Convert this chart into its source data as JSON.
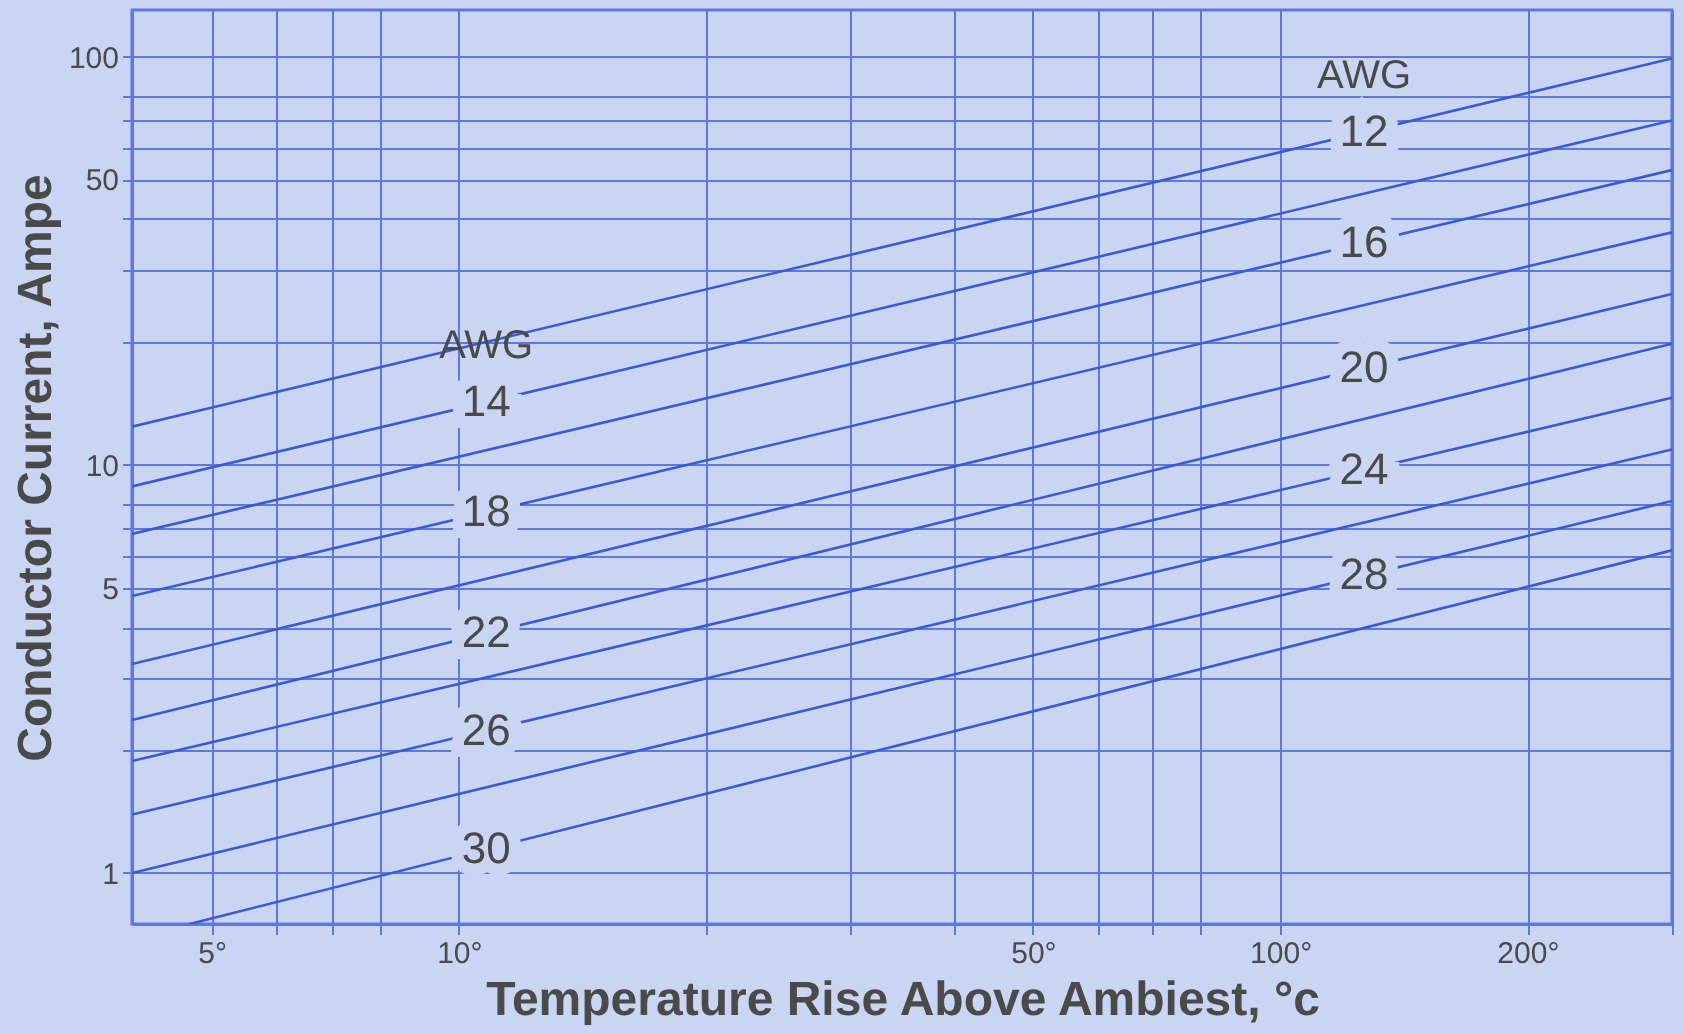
{
  "chart_data": {
    "type": "line",
    "xlabel": "Temperature Rise Above Ambiest, °c",
    "ylabel": "Conductor Current, Ampe",
    "log": "xy",
    "grid": true,
    "legend": false,
    "marker": "none",
    "line_style": "solid",
    "xlim": [
      4,
      300
    ],
    "xticks": [
      {
        "value": 5,
        "label": "5°"
      },
      {
        "value": 6,
        "label": null
      },
      {
        "value": 7,
        "label": null
      },
      {
        "value": 8,
        "label": null
      },
      {
        "value": 10,
        "label": "10°"
      },
      {
        "value": 20,
        "label": null
      },
      {
        "value": 30,
        "label": null
      },
      {
        "value": 40,
        "label": null
      },
      {
        "value": 50,
        "label": "50°"
      },
      {
        "value": 60,
        "label": null
      },
      {
        "value": 70,
        "label": null
      },
      {
        "value": 80,
        "label": null
      },
      {
        "value": 100,
        "label": "100°"
      },
      {
        "value": 200,
        "label": "200°"
      },
      {
        "value": 300,
        "label": null
      }
    ],
    "ylim": [
      0.75,
      130
    ],
    "yticks": [
      1,
      {
        "value": 2,
        "label": null
      },
      {
        "value": 3,
        "label": null
      },
      {
        "value": 4,
        "label": null
      },
      5,
      {
        "value": 6,
        "label": null
      },
      {
        "value": 7,
        "label": null
      },
      {
        "value": 8,
        "label": null
      },
      10,
      {
        "value": 20,
        "label": null
      },
      {
        "value": 30,
        "label": null
      },
      {
        "value": 40,
        "label": null
      },
      50,
      {
        "value": 60,
        "label": null
      },
      {
        "value": 70,
        "label": null
      },
      {
        "value": 80,
        "label": null
      },
      100
    ],
    "annotations": [
      "AWG",
      "AWG"
    ],
    "series": [
      {
        "name": "12",
        "color": "#3a5bd6",
        "x": [
          4,
          300
        ],
        "values": [
          12.4,
          98.9
        ]
      },
      {
        "name": "14",
        "color": "#3a5bd6",
        "x": [
          4,
          300
        ],
        "values": [
          8.85,
          69.7
        ]
      },
      {
        "name": "16",
        "color": "#3a5bd6",
        "x": [
          4,
          300
        ],
        "values": [
          6.77,
          52.7
        ]
      },
      {
        "name": "18",
        "color": "#3a5bd6",
        "x": [
          4,
          300
        ],
        "values": [
          4.77,
          37.1
        ]
      },
      {
        "name": "20",
        "color": "#3a5bd6",
        "x": [
          4,
          300
        ],
        "values": [
          3.25,
          26.2
        ]
      },
      {
        "name": "22",
        "color": "#3a5bd6",
        "x": [
          4,
          300
        ],
        "values": [
          2.37,
          19.8
        ]
      },
      {
        "name": "24",
        "color": "#3a5bd6",
        "x": [
          4,
          300
        ],
        "values": [
          1.88,
          14.6
        ]
      },
      {
        "name": "26",
        "color": "#3a5bd6",
        "x": [
          4,
          300
        ],
        "values": [
          1.39,
          10.9
        ]
      },
      {
        "name": "28",
        "color": "#3a5bd6",
        "x": [
          4,
          300
        ],
        "values": [
          1.0,
          8.15
        ]
      },
      {
        "name": "30",
        "color": "#3a5bd6",
        "x": [
          4.7,
          300
        ],
        "values": [
          0.75,
          6.17
        ]
      }
    ]
  }
}
